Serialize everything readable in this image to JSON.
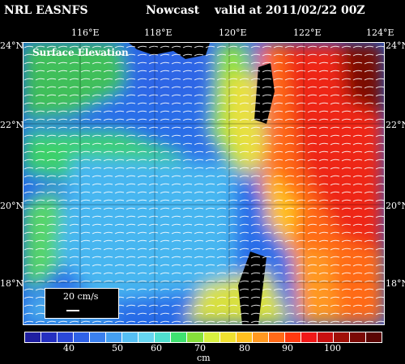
{
  "header": {
    "source": "NRL EASNFS",
    "product": "Nowcast",
    "valid": "valid at 2011/02/22 00Z"
  },
  "map": {
    "panel_label": "Surface Elevation",
    "lon_labels": [
      "116°E",
      "118°E",
      "120°E",
      "122°E",
      "124°E"
    ],
    "lat_labels": [
      "24°N",
      "22°N",
      "20°N",
      "18°N"
    ],
    "scale_label": "20 cm/s"
  },
  "colorbar": {
    "tick_labels": [
      "40",
      "50",
      "60",
      "70",
      "80",
      "90",
      "100"
    ],
    "units": "cm",
    "colors": [
      "#1f1fa0",
      "#2530c0",
      "#2a48d8",
      "#2f62e6",
      "#3a80ee",
      "#45a0f2",
      "#55bff3",
      "#66d6f0",
      "#50e0d0",
      "#3fe070",
      "#86e03a",
      "#d8f040",
      "#f0e030",
      "#ffc020",
      "#ff9820",
      "#ff6a18",
      "#ff3a10",
      "#f01818",
      "#c81010",
      "#a01008",
      "#7a0a06",
      "#5a0604"
    ]
  }
}
